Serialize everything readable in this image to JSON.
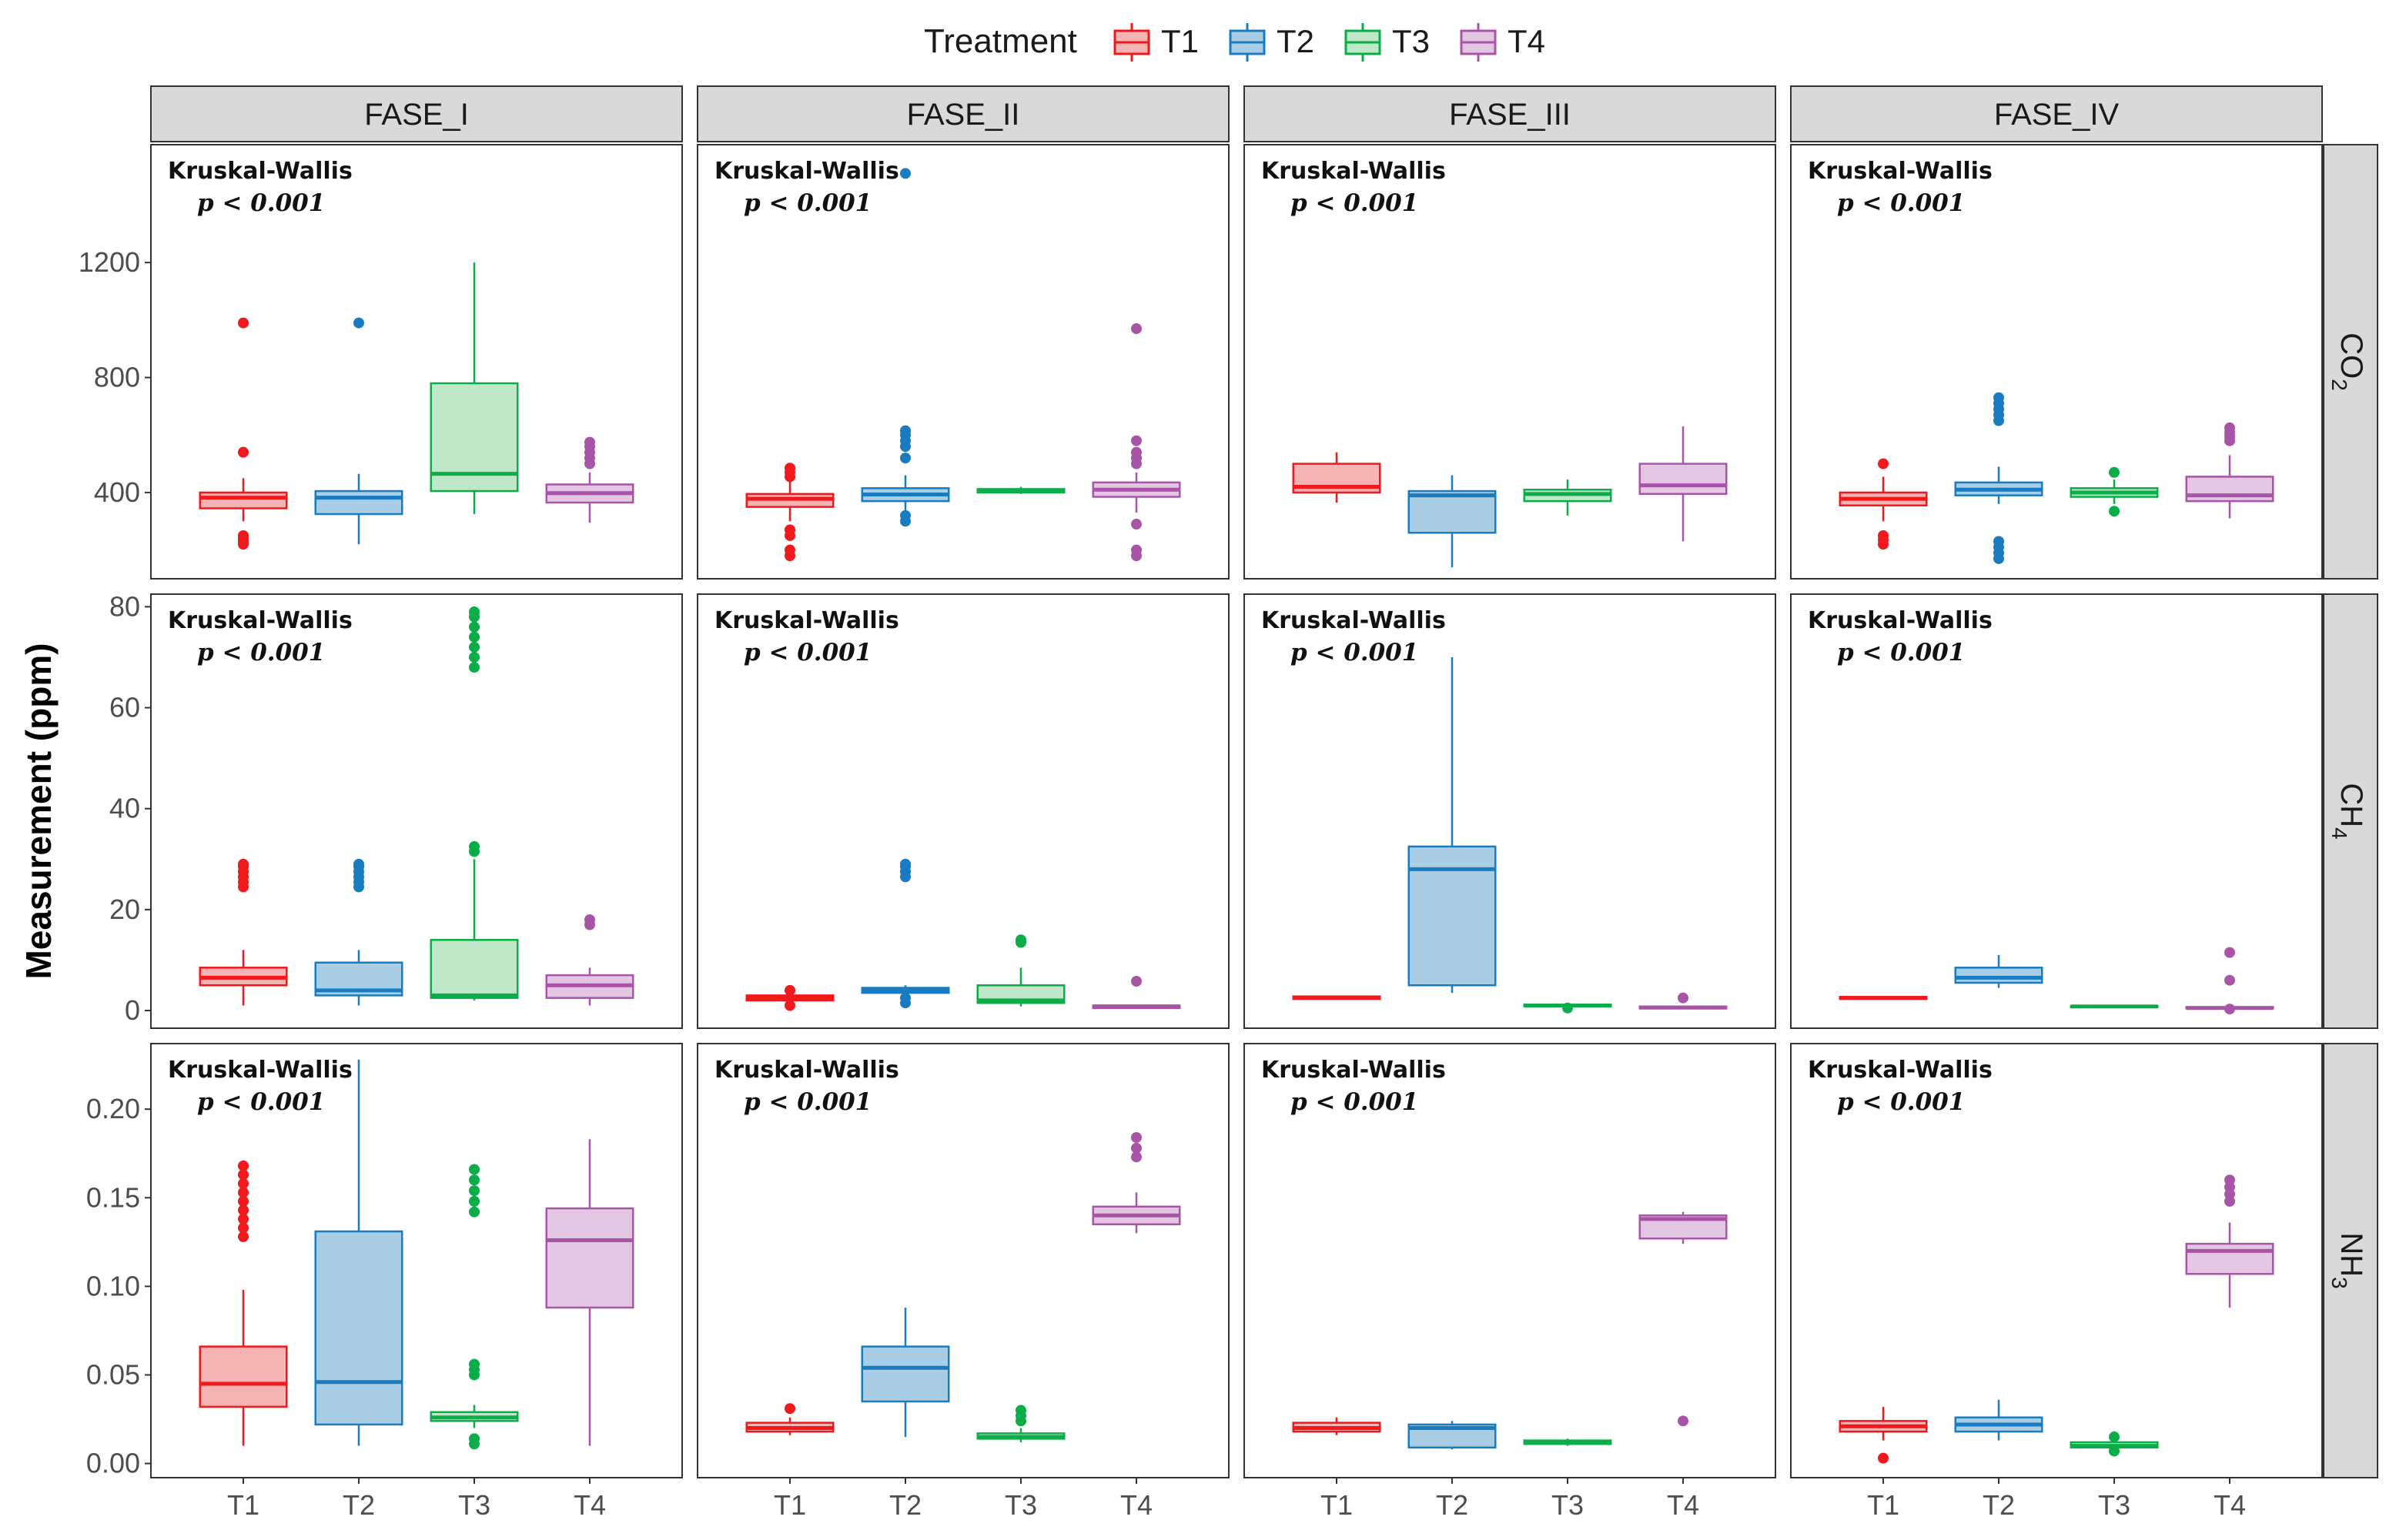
{
  "chart_data": {
    "type": "boxplot",
    "ylabel": "Measurement (ppm)",
    "legend": {
      "title": "Treatment",
      "placement": "top-center",
      "entries": [
        {
          "label": "T1",
          "color": "#f0191c",
          "fill": "#f5b3b3"
        },
        {
          "label": "T2",
          "color": "#1a7cc0",
          "fill": "#a9cde4"
        },
        {
          "label": "T3",
          "color": "#0aad48",
          "fill": "#bfe8c9"
        },
        {
          "label": "T4",
          "color": "#a855a8",
          "fill": "#e3c7e2"
        }
      ]
    },
    "categories": [
      "T1",
      "T2",
      "T3",
      "T4"
    ],
    "phases": [
      "FASE_I",
      "FASE_II",
      "FASE_III",
      "FASE_IV"
    ],
    "rows": [
      {
        "gas": "CO",
        "sub": "2",
        "ylim": [
          100,
          1610
        ],
        "ticks": [
          {
            "v": 400,
            "t": "400"
          },
          {
            "v": 800,
            "t": "800"
          },
          {
            "v": 1200,
            "t": "1200"
          }
        ],
        "panels": [
          {
            "stat": "Kruskal-Wallis",
            "p": "p < 0.001",
            "boxes": [
              {
                "q1": 345,
                "med": 382,
                "q3": 400,
                "lo": 300,
                "hi": 450,
                "out": [
                  220,
                  230,
                  240,
                  250,
                  540,
                  990
                ]
              },
              {
                "q1": 325,
                "med": 382,
                "q3": 405,
                "lo": 220,
                "hi": 465,
                "out": [
                  990
                ]
              },
              {
                "q1": 405,
                "med": 465,
                "q3": 780,
                "lo": 325,
                "hi": 1200,
                "out": []
              },
              {
                "q1": 365,
                "med": 398,
                "q3": 428,
                "lo": 295,
                "hi": 470,
                "out": [
                  500,
                  520,
                  540,
                  560,
                  575
                ]
              }
            ]
          },
          {
            "stat": "Kruskal-Wallis",
            "p": "p < 0.001",
            "boxes": [
              {
                "q1": 350,
                "med": 378,
                "q3": 395,
                "lo": 300,
                "hi": 440,
                "out": [
                  180,
                  200,
                  250,
                  270,
                  455,
                  470,
                  485
                ]
              },
              {
                "q1": 370,
                "med": 393,
                "q3": 415,
                "lo": 310,
                "hi": 460,
                "out": [
                  300,
                  320,
                  520,
                  560,
                  580,
                  600,
                  615,
                  1510
                ]
              },
              {
                "q1": 400,
                "med": 407,
                "q3": 412,
                "lo": 395,
                "hi": 420,
                "out": []
              },
              {
                "q1": 385,
                "med": 410,
                "q3": 435,
                "lo": 330,
                "hi": 470,
                "out": [
                  180,
                  200,
                  290,
                  500,
                  520,
                  540,
                  580,
                  970
                ]
              }
            ]
          },
          {
            "stat": "Kruskal-Wallis",
            "p": "p < 0.001",
            "boxes": [
              {
                "q1": 400,
                "med": 420,
                "q3": 500,
                "lo": 365,
                "hi": 540,
                "out": []
              },
              {
                "q1": 260,
                "med": 390,
                "q3": 405,
                "lo": 140,
                "hi": 460,
                "out": []
              },
              {
                "q1": 370,
                "med": 395,
                "q3": 410,
                "lo": 320,
                "hi": 445,
                "out": []
              },
              {
                "q1": 395,
                "med": 425,
                "q3": 500,
                "lo": 230,
                "hi": 630,
                "out": []
              }
            ]
          },
          {
            "stat": "Kruskal-Wallis",
            "p": "p < 0.001",
            "boxes": [
              {
                "q1": 355,
                "med": 378,
                "q3": 400,
                "lo": 300,
                "hi": 455,
                "out": [
                  220,
                  235,
                  250,
                  500
                ]
              },
              {
                "q1": 390,
                "med": 410,
                "q3": 435,
                "lo": 360,
                "hi": 490,
                "out": [
                  170,
                  190,
                  210,
                  230,
                  650,
                  670,
                  690,
                  710,
                  730
                ]
              },
              {
                "q1": 385,
                "med": 400,
                "q3": 415,
                "lo": 360,
                "hi": 445,
                "out": [
                  335,
                  470
                ]
              },
              {
                "q1": 370,
                "med": 390,
                "q3": 455,
                "lo": 310,
                "hi": 530,
                "out": [
                  580,
                  595,
                  610,
                  625
                ]
              }
            ]
          }
        ]
      },
      {
        "gas": "CH",
        "sub": "4",
        "ylim": [
          -3.5,
          82.5
        ],
        "ticks": [
          {
            "v": 0,
            "t": "0"
          },
          {
            "v": 20,
            "t": "20"
          },
          {
            "v": 40,
            "t": "40"
          },
          {
            "v": 60,
            "t": "60"
          },
          {
            "v": 80,
            "t": "80"
          }
        ],
        "panels": [
          {
            "stat": "Kruskal-Wallis",
            "p": "p < 0.001",
            "boxes": [
              {
                "q1": 5,
                "med": 6.5,
                "q3": 8.5,
                "lo": 1,
                "hi": 12,
                "out": [
                  24.5,
                  25.5,
                  26.5,
                  27.5,
                  28.5,
                  29
                ]
              },
              {
                "q1": 3,
                "med": 4,
                "q3": 9.5,
                "lo": 1,
                "hi": 12,
                "out": [
                  24.5,
                  25.5,
                  26.5,
                  27.5,
                  28.5,
                  29
                ]
              },
              {
                "q1": 2.5,
                "med": 3,
                "q3": 14,
                "lo": 2,
                "hi": 30,
                "out": [
                  31.5,
                  32.5,
                  68,
                  70,
                  72,
                  74,
                  76,
                  78,
                  79
                ]
              },
              {
                "q1": 2.5,
                "med": 5,
                "q3": 7,
                "lo": 1,
                "hi": 8.5,
                "out": [
                  17,
                  18
                ]
              }
            ]
          },
          {
            "stat": "Kruskal-Wallis",
            "p": "p < 0.001",
            "boxes": [
              {
                "q1": 2,
                "med": 2.5,
                "q3": 3,
                "lo": 1.5,
                "hi": 3.5,
                "out": [
                  1,
                  4
                ]
              },
              {
                "q1": 3.5,
                "med": 4,
                "q3": 4.5,
                "lo": 3,
                "hi": 5,
                "out": [
                  1.5,
                  2.5,
                  26.5,
                  27.5,
                  28.5,
                  29
                ]
              },
              {
                "q1": 1.5,
                "med": 2,
                "q3": 5,
                "lo": 0.8,
                "hi": 8.5,
                "out": [
                  13.5,
                  14
                ]
              },
              {
                "q1": 0.5,
                "med": 0.8,
                "q3": 1,
                "lo": 0.4,
                "hi": 1.2,
                "out": [
                  5.8
                ]
              }
            ]
          },
          {
            "stat": "Kruskal-Wallis",
            "p": "p < 0.001",
            "boxes": [
              {
                "q1": 2.3,
                "med": 2.5,
                "q3": 2.8,
                "lo": 2.2,
                "hi": 2.9,
                "out": []
              },
              {
                "q1": 5,
                "med": 28,
                "q3": 32.5,
                "lo": 3.5,
                "hi": 70,
                "out": []
              },
              {
                "q1": 0.8,
                "med": 1,
                "q3": 1.2,
                "lo": 0.7,
                "hi": 1.3,
                "out": [
                  0.5
                ]
              },
              {
                "q1": 0.4,
                "med": 0.6,
                "q3": 0.8,
                "lo": 0.3,
                "hi": 1,
                "out": [
                  2.5
                ]
              }
            ]
          },
          {
            "stat": "Kruskal-Wallis",
            "p": "p < 0.001",
            "boxes": [
              {
                "q1": 2.3,
                "med": 2.5,
                "q3": 2.7,
                "lo": 2.2,
                "hi": 2.8,
                "out": []
              },
              {
                "q1": 5.5,
                "med": 6.5,
                "q3": 8.5,
                "lo": 4.5,
                "hi": 11,
                "out": []
              },
              {
                "q1": 0.7,
                "med": 0.8,
                "q3": 0.9,
                "lo": 0.6,
                "hi": 1,
                "out": []
              },
              {
                "q1": 0.4,
                "med": 0.5,
                "q3": 0.7,
                "lo": 0.3,
                "hi": 1,
                "out": [
                  0.3,
                  6,
                  11.5
                ]
              }
            ]
          }
        ]
      },
      {
        "gas": "NH",
        "sub": "3",
        "ylim": [
          -0.008,
          0.237
        ],
        "ticks": [
          {
            "v": 0,
            "t": "0.00"
          },
          {
            "v": 0.05,
            "t": "0.05"
          },
          {
            "v": 0.1,
            "t": "0.10"
          },
          {
            "v": 0.15,
            "t": "0.15"
          },
          {
            "v": 0.2,
            "t": "0.20"
          }
        ],
        "panels": [
          {
            "stat": "Kruskal-Wallis",
            "p": "p < 0.001",
            "boxes": [
              {
                "q1": 0.032,
                "med": 0.045,
                "q3": 0.066,
                "lo": 0.01,
                "hi": 0.098,
                "out": [
                  0.128,
                  0.133,
                  0.138,
                  0.143,
                  0.148,
                  0.153,
                  0.158,
                  0.163,
                  0.168
                ]
              },
              {
                "q1": 0.022,
                "med": 0.046,
                "q3": 0.131,
                "lo": 0.01,
                "hi": 0.228,
                "out": []
              },
              {
                "q1": 0.024,
                "med": 0.026,
                "q3": 0.029,
                "lo": 0.02,
                "hi": 0.033,
                "out": [
                  0.011,
                  0.014,
                  0.05,
                  0.053,
                  0.056,
                  0.142,
                  0.148,
                  0.154,
                  0.16,
                  0.166
                ]
              },
              {
                "q1": 0.088,
                "med": 0.126,
                "q3": 0.144,
                "lo": 0.01,
                "hi": 0.183,
                "out": []
              }
            ]
          },
          {
            "stat": "Kruskal-Wallis",
            "p": "p < 0.001",
            "boxes": [
              {
                "q1": 0.018,
                "med": 0.02,
                "q3": 0.023,
                "lo": 0.016,
                "hi": 0.026,
                "out": [
                  0.031
                ]
              },
              {
                "q1": 0.035,
                "med": 0.054,
                "q3": 0.066,
                "lo": 0.015,
                "hi": 0.088,
                "out": []
              },
              {
                "q1": 0.014,
                "med": 0.015,
                "q3": 0.017,
                "lo": 0.012,
                "hi": 0.02,
                "out": [
                  0.024,
                  0.027,
                  0.03
                ]
              },
              {
                "q1": 0.135,
                "med": 0.14,
                "q3": 0.145,
                "lo": 0.13,
                "hi": 0.153,
                "out": [
                  0.173,
                  0.178,
                  0.184
                ]
              }
            ]
          },
          {
            "stat": "Kruskal-Wallis",
            "p": "p < 0.001",
            "boxes": [
              {
                "q1": 0.018,
                "med": 0.02,
                "q3": 0.023,
                "lo": 0.016,
                "hi": 0.026,
                "out": []
              },
              {
                "q1": 0.009,
                "med": 0.02,
                "q3": 0.022,
                "lo": 0.008,
                "hi": 0.024,
                "out": []
              },
              {
                "q1": 0.011,
                "med": 0.012,
                "q3": 0.013,
                "lo": 0.01,
                "hi": 0.014,
                "out": []
              },
              {
                "q1": 0.127,
                "med": 0.138,
                "q3": 0.14,
                "lo": 0.124,
                "hi": 0.142,
                "out": [
                  0.024
                ]
              }
            ]
          },
          {
            "stat": "Kruskal-Wallis",
            "p": "p < 0.001",
            "boxes": [
              {
                "q1": 0.018,
                "med": 0.021,
                "q3": 0.024,
                "lo": 0.013,
                "hi": 0.032,
                "out": [
                  0.003
                ]
              },
              {
                "q1": 0.018,
                "med": 0.022,
                "q3": 0.026,
                "lo": 0.013,
                "hi": 0.036,
                "out": []
              },
              {
                "q1": 0.009,
                "med": 0.01,
                "q3": 0.012,
                "lo": 0.007,
                "hi": 0.013,
                "out": [
                  0.007,
                  0.015
                ]
              },
              {
                "q1": 0.107,
                "med": 0.12,
                "q3": 0.124,
                "lo": 0.088,
                "hi": 0.136,
                "out": [
                  0.148,
                  0.152,
                  0.156,
                  0.16
                ]
              }
            ]
          }
        ]
      }
    ]
  }
}
